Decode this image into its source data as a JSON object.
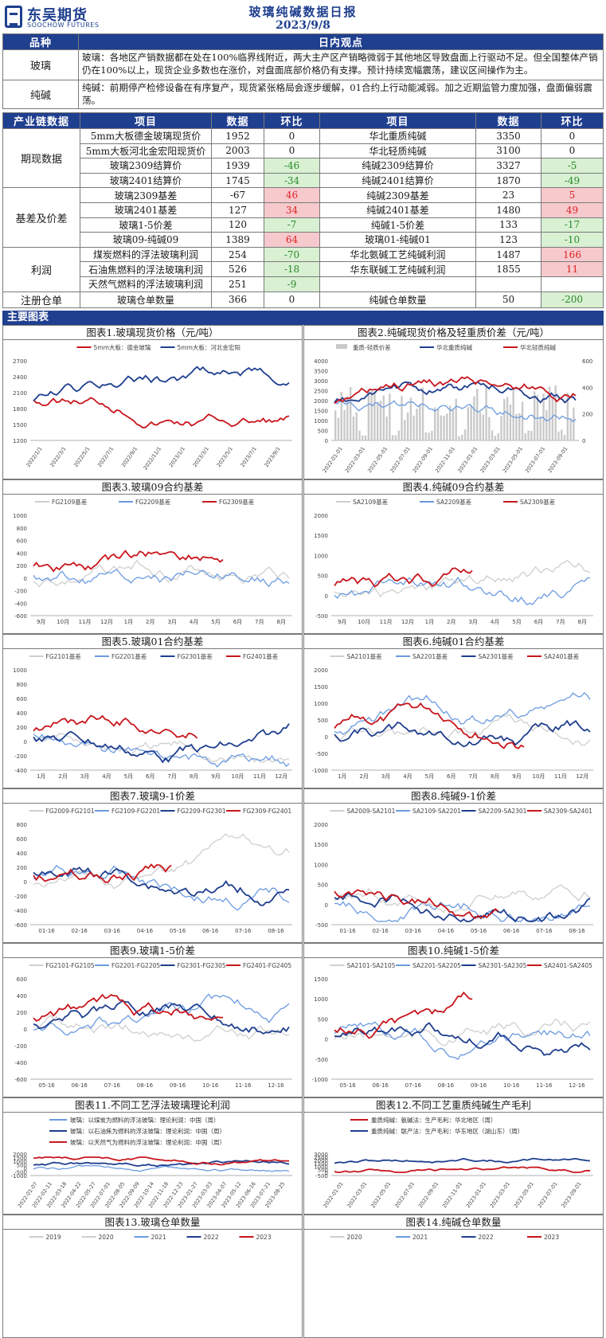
{
  "header": {
    "logo_cn": "东吴期货",
    "logo_en": "SOOCHOW FUTURES",
    "title": "玻璃纯碱数据日报",
    "date": "2023/9/8"
  },
  "views": {
    "col1": "品种",
    "col2": "日内观点",
    "rows": [
      {
        "name": "玻璃",
        "text": "玻璃：各地区产销数据都在处在100%临界线附近，两大主产区产销略微弱于其他地区导致盘面上行驱动不足。但全国整体产销仍在100%以上，现货企业多数也在涨价，对盘面底部价格仍有支撑。预计持续宽幅震荡，建议区间操作为主。"
      },
      {
        "name": "纯碱",
        "text": "纯碱：前期停产检修设备在有序复产，现货紧张格局会逐步缓解，01合约上行动能减弱。加之近期监管力度加强，盘面偏弱震荡。"
      }
    ]
  },
  "industry": {
    "headers": [
      "产业链数据",
      "项目",
      "数据",
      "环比",
      "项目",
      "数据",
      "环比"
    ],
    "groups": [
      {
        "name": "期现数据",
        "rows": [
          {
            "i1": "5mm大板德金玻璃现货价",
            "d1": "1952",
            "c1": "0",
            "t1": "n",
            "i2": "华北重质纯碱",
            "d2": "3350",
            "c2": "0",
            "t2": "n"
          },
          {
            "i1": "5mm大板河北金宏阳现货价",
            "d1": "2003",
            "c1": "0",
            "t1": "n",
            "i2": "华北轻质纯碱",
            "d2": "3100",
            "c2": "0",
            "t2": "n"
          },
          {
            "i1": "玻璃2309结算价",
            "d1": "1939",
            "c1": "-46",
            "t1": "g",
            "i2": "纯碱2309结算价",
            "d2": "3327",
            "c2": "-5",
            "t2": "g"
          },
          {
            "i1": "玻璃2401结算价",
            "d1": "1745",
            "c1": "-34",
            "t1": "g",
            "i2": "纯碱2401结算价",
            "d2": "1870",
            "c2": "-49",
            "t2": "g"
          }
        ]
      },
      {
        "name": "基差及价差",
        "rows": [
          {
            "i1": "玻璃2309基差",
            "d1": "-67",
            "c1": "46",
            "t1": "r",
            "i2": "纯碱2309基差",
            "d2": "23",
            "c2": "5",
            "t2": "r"
          },
          {
            "i1": "玻璃2401基差",
            "d1": "127",
            "c1": "34",
            "t1": "r",
            "i2": "纯碱2401基差",
            "d2": "1480",
            "c2": "49",
            "t2": "r"
          },
          {
            "i1": "玻璃1-5价差",
            "d1": "120",
            "c1": "-7",
            "t1": "g",
            "i2": "纯碱1-5价差",
            "d2": "133",
            "c2": "-17",
            "t2": "g"
          },
          {
            "i1": "玻璃09-纯碱09",
            "d1": "1389",
            "c1": "64",
            "t1": "r",
            "i2": "玻璃01-纯碱01",
            "d2": "123",
            "c2": "-10",
            "t2": "g"
          }
        ]
      },
      {
        "name": "利润",
        "rows": [
          {
            "i1": "煤炭燃料的浮法玻璃利润",
            "d1": "254",
            "c1": "-70",
            "t1": "g",
            "i2": "华北氨碱工艺纯碱利润",
            "d2": "1487",
            "c2": "166",
            "t2": "r"
          },
          {
            "i1": "石油焦燃料的浮法玻璃利润",
            "d1": "526",
            "c1": "-18",
            "t1": "g",
            "i2": "华东联碱工艺纯碱利润",
            "d2": "1855",
            "c2": "11",
            "t2": "r"
          },
          {
            "i1": "天然气燃料的浮法玻璃利润",
            "d1": "251",
            "c1": "-9",
            "t1": "g",
            "i2": "",
            "d2": "",
            "c2": "",
            "t2": "n"
          }
        ]
      },
      {
        "name": "注册仓单",
        "rows": [
          {
            "i1": "玻璃仓单数量",
            "d1": "366",
            "c1": "0",
            "t1": "n",
            "i2": "纯碱仓单数量",
            "d2": "50",
            "c2": "-200",
            "t2": "g"
          }
        ]
      }
    ]
  },
  "section_title": "主要图表",
  "charts": [
    {
      "title": "图表1.玻璃现货价格（元/吨）",
      "legend": [
        "5mm大板：德金玻璃",
        "5mm大板：河北金宏阳"
      ],
      "yticks": [
        "2700",
        "2400",
        "2100",
        "1800",
        "1500",
        "1200"
      ],
      "xticks": [
        "2022/1/1",
        "2022/3/1",
        "2022/5/1",
        "2022/7/1",
        "2022/9/1",
        "2022/11/1",
        "2023/1/1",
        "2023/3/1",
        "2023/5/1",
        "2023/7/1",
        "2023/9/1"
      ]
    },
    {
      "title": "图表2.纯碱现货价格及轻重质价差（元/吨）",
      "legend": [
        "重质-轻质价差",
        "华北重质纯碱",
        "华北轻质纯碱"
      ],
      "yticks": [
        "4000",
        "3500",
        "3000",
        "2500",
        "2000",
        "1500",
        "1000",
        "500",
        "0"
      ],
      "y2ticks": [
        "600",
        "400",
        "200",
        "0"
      ],
      "xticks": [
        "2022-01-01",
        "2022-03-01",
        "2022-05-01",
        "2022-07-01",
        "2022-09-01",
        "2022-11-01",
        "2023-01-01",
        "2023-03-01",
        "2023-05-01",
        "2023-07-01",
        "2023-09-01"
      ]
    },
    {
      "title": "图表3.玻璃09合约基差",
      "legend": [
        "FG2109基差",
        "FG2209基差",
        "FG2309基差"
      ],
      "yticks": [
        "1000",
        "800",
        "600",
        "400",
        "200",
        "0",
        "-200",
        "-400",
        "-600"
      ],
      "xticks": [
        "9月",
        "10月",
        "11月",
        "12月",
        "1月",
        "2月",
        "3月",
        "4月",
        "5月",
        "6月",
        "7月",
        "8月"
      ]
    },
    {
      "title": "图表4.纯碱09合约基差",
      "legend": [
        "SA2109基差",
        "SA2209基差",
        "SA2309基差"
      ],
      "yticks": [
        "2000",
        "1500",
        "1000",
        "500",
        "0",
        "-500"
      ],
      "xticks": [
        "9月",
        "10月",
        "11月",
        "12月",
        "1月",
        "2月",
        "3月",
        "4月",
        "5月",
        "6月",
        "7月",
        "8月"
      ]
    },
    {
      "title": "图表5.玻璃01合约基差",
      "legend": [
        "FG2101基差",
        "FG2201基差",
        "FG2301基差",
        "FG2401基差"
      ],
      "yticks": [
        "1000",
        "800",
        "600",
        "400",
        "200",
        "0",
        "-200",
        "-400"
      ],
      "xticks": [
        "1月",
        "2月",
        "3月",
        "4月",
        "5月",
        "6月",
        "7月",
        "8月",
        "9月",
        "10月",
        "11月",
        "12月"
      ]
    },
    {
      "title": "图表6.纯碱01合约基差",
      "legend": [
        "SA2101基差",
        "SA2201基差",
        "SA2301基差",
        "SA2401基差"
      ],
      "yticks": [
        "2000",
        "1500",
        "1000",
        "500",
        "0",
        "-500",
        "-1000"
      ],
      "xticks": [
        "1月",
        "2月",
        "3月",
        "4月",
        "5月",
        "6月",
        "7月",
        "8月",
        "9月",
        "10月",
        "11月",
        "12月"
      ]
    },
    {
      "title": "图表7.玻璃9-1价差",
      "legend": [
        "FG2009-FG2101",
        "FG2109-FG2201",
        "FG2209-FG2301",
        "FG2309-FG2401"
      ],
      "yticks": [
        "800",
        "600",
        "400",
        "200",
        "0",
        "-200",
        "-400",
        "-600"
      ],
      "xticks": [
        "01-16",
        "02-16",
        "03-16",
        "04-16",
        "05-16",
        "06-16",
        "07-16",
        "08-16"
      ]
    },
    {
      "title": "图表8.纯碱9-1价差",
      "legend": [
        "SA2009-SA2101",
        "SA2109-SA2201",
        "SA2209-SA2301",
        "SA2309-SA2401"
      ],
      "yticks": [
        "2000",
        "1500",
        "1000",
        "500",
        "0",
        "-500"
      ],
      "xticks": [
        "01-16",
        "02-16",
        "03-16",
        "04-16",
        "05-16",
        "06-16",
        "07-16",
        "08-16"
      ]
    },
    {
      "title": "图表9.玻璃1-5价差",
      "legend": [
        "FG2101-FG2105",
        "FG2201-FG2205",
        "FG2301-FG2305",
        "FG2401-FG2405"
      ],
      "yticks": [
        "600",
        "400",
        "200",
        "0",
        "-200",
        "-400",
        "-600"
      ],
      "xticks": [
        "05-16",
        "06-16",
        "07-16",
        "08-16",
        "09-16",
        "10-16",
        "11-16",
        "12-16"
      ]
    },
    {
      "title": "图表10.纯碱1-5价差",
      "legend": [
        "SA2101-SA2105",
        "SA2201-SA2205",
        "SA2301-SA2305",
        "SA2401-SA2405"
      ],
      "yticks": [
        "1500",
        "1000",
        "500",
        "0",
        "-500",
        "-1000"
      ],
      "xticks": [
        "05-16",
        "06-16",
        "07-16",
        "08-16",
        "09-16",
        "10-16",
        "11-16",
        "12-16"
      ]
    },
    {
      "title": "图表11.不同工艺浮法玻璃理论利润",
      "legend": [
        "玻璃：以煤炭为燃料的浮法玻璃：理论利润：中国（周）",
        "玻璃：以石油焦为燃料的浮法玻璃：理论利润：中国（周）",
        "玻璃：以天然气为燃料的浮法玻璃：理论利润：中国（周）"
      ],
      "yticks": [
        "2000",
        "1500",
        "1000",
        "500",
        "0",
        "-500",
        "-1000"
      ],
      "xticks": [
        "2022-01-07",
        "2022-02-11",
        "2022-03-18",
        "2022-04-22",
        "2022-05-27",
        "2022-07-01",
        "2022-08-05",
        "2022-09-09",
        "2022-10-14",
        "2022-11-18",
        "2022-12-23",
        "2023-01-27",
        "2023-03-03",
        "2023-04-07",
        "2023-05-12",
        "2023-06-16",
        "2023-07-21",
        "2023-08-25"
      ]
    },
    {
      "title": "图表12.不同工艺重质纯碱生产毛利",
      "legend": [
        "重质纯碱：氨碱法：生产毛利：华北地区（周）",
        "重质纯碱：联产法：生产毛利：华东地区（湖山东）（周）"
      ],
      "yticks": [
        "3000",
        "2500",
        "2000",
        "1500",
        "1000",
        "500",
        "0",
        "-500"
      ],
      "xticks": [
        "2022-01-01",
        "2022-03-01",
        "2022-05-01",
        "2022-07-01",
        "2022-09-01",
        "2022-11-01",
        "2023-01-01",
        "2023-03-01",
        "2023-05-01",
        "2023-07-01",
        "2023-09-01"
      ]
    },
    {
      "title": "图表13.玻璃仓单数量",
      "legend": [
        "2019",
        "2020",
        "2021",
        "2022",
        "2023"
      ]
    },
    {
      "title": "图表14.纯碱仓单数量",
      "legend": [
        "2020",
        "2021",
        "2022",
        "2023"
      ]
    }
  ],
  "colors": {
    "navy": "#1f3f8f",
    "red": "#c8161d",
    "blue": "#5b8fd6",
    "grey": "#c9c9c9",
    "green_bg": "#d9f0d3",
    "red_bg": "#f6c9cd"
  }
}
